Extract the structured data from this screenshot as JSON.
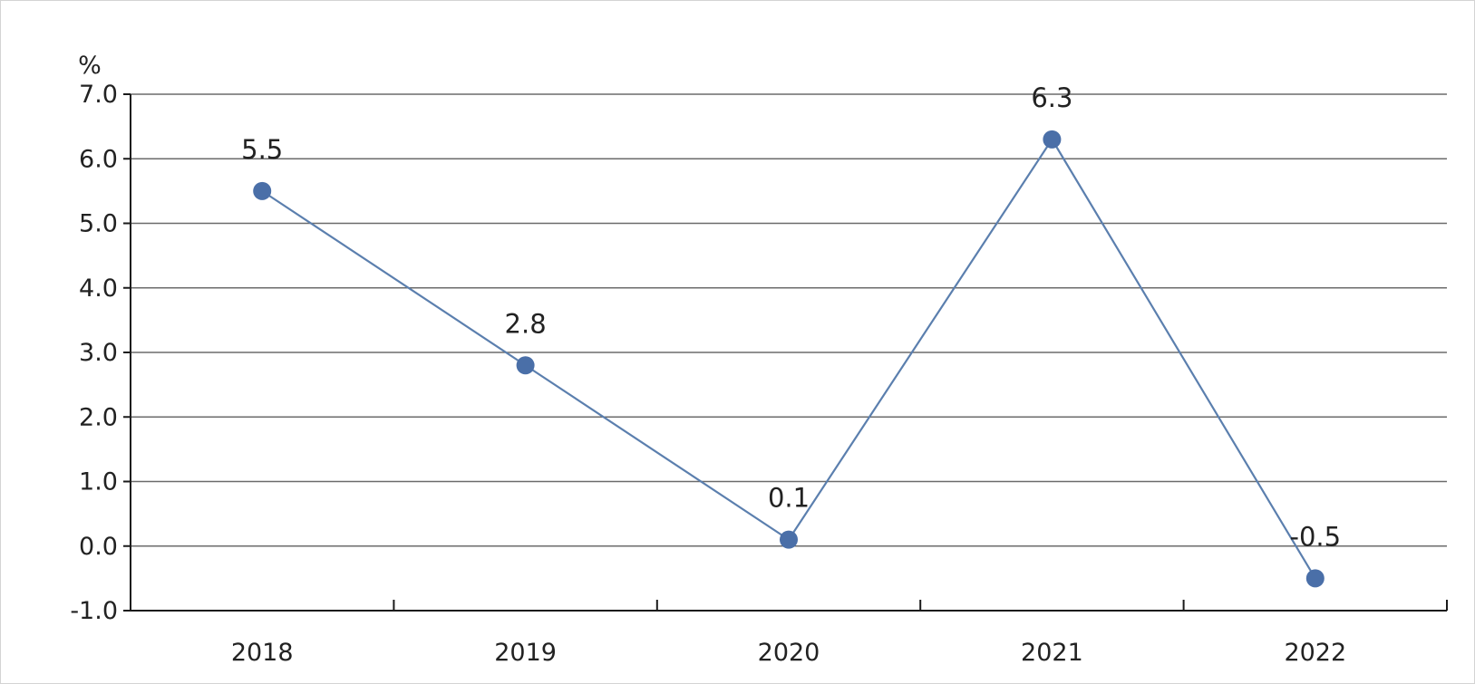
{
  "chart_data": {
    "type": "line",
    "categories": [
      "2018",
      "2019",
      "2020",
      "2021",
      "2022"
    ],
    "series": [
      {
        "values": [
          5.5,
          2.8,
          0.1,
          6.3,
          -0.5
        ]
      }
    ],
    "data_labels": [
      "5.5",
      "2.8",
      "0.1",
      "6.3",
      "-0.5"
    ],
    "yticks": [
      "7.0",
      "6.0",
      "5.0",
      "4.0",
      "3.0",
      "2.0",
      "1.0",
      "0.0",
      "-1.0"
    ],
    "ylim": [
      -1,
      7
    ],
    "y_unit": "%",
    "grid": true,
    "line_color": "#5b7fae",
    "marker_color": "#4a6fa8"
  }
}
